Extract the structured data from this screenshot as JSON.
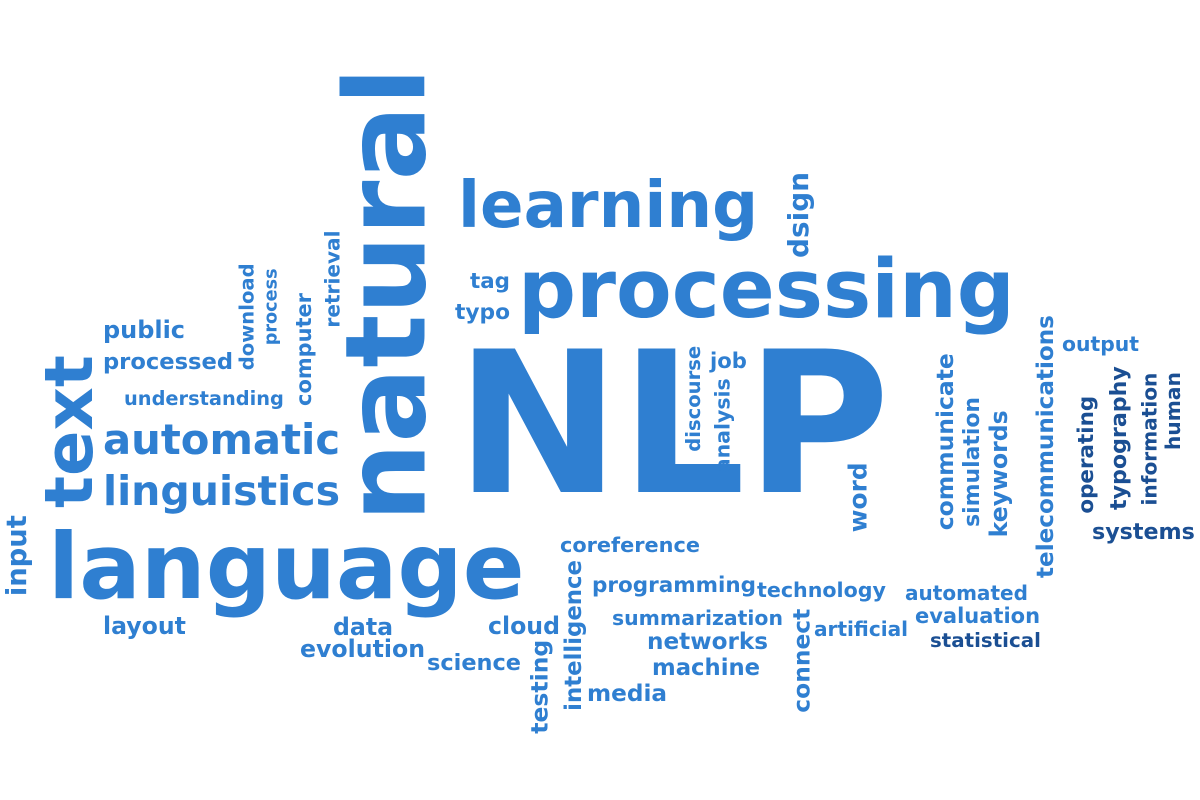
{
  "colors": {
    "background": "#ffffff",
    "blue": "#2f7fd1",
    "dark_blue": "#1b4f93"
  },
  "words": [
    {
      "text": "NLP",
      "color": "blue"
    },
    {
      "text": "processing",
      "color": "blue"
    },
    {
      "text": "natural",
      "color": "blue"
    },
    {
      "text": "language",
      "color": "blue"
    },
    {
      "text": "learning",
      "color": "blue"
    },
    {
      "text": "text",
      "color": "blue"
    },
    {
      "text": "automatic",
      "color": "blue"
    },
    {
      "text": "linguistics",
      "color": "blue"
    },
    {
      "text": "public",
      "color": "blue"
    },
    {
      "text": "processed",
      "color": "blue"
    },
    {
      "text": "understanding",
      "color": "blue"
    },
    {
      "text": "download",
      "color": "blue"
    },
    {
      "text": "process",
      "color": "blue"
    },
    {
      "text": "computer",
      "color": "blue"
    },
    {
      "text": "retrieval",
      "color": "blue"
    },
    {
      "text": "tag",
      "color": "blue"
    },
    {
      "text": "typo",
      "color": "blue"
    },
    {
      "text": "dsign",
      "color": "blue"
    },
    {
      "text": "input",
      "color": "blue"
    },
    {
      "text": "layout",
      "color": "blue"
    },
    {
      "text": "data",
      "color": "blue"
    },
    {
      "text": "evolution",
      "color": "blue"
    },
    {
      "text": "cloud",
      "color": "blue"
    },
    {
      "text": "science",
      "color": "blue"
    },
    {
      "text": "testing",
      "color": "blue"
    },
    {
      "text": "intelligence",
      "color": "blue"
    },
    {
      "text": "media",
      "color": "blue"
    },
    {
      "text": "coreference",
      "color": "blue"
    },
    {
      "text": "programming",
      "color": "blue"
    },
    {
      "text": "technology",
      "color": "blue"
    },
    {
      "text": "summarization",
      "color": "blue"
    },
    {
      "text": "networks",
      "color": "blue"
    },
    {
      "text": "machine",
      "color": "blue"
    },
    {
      "text": "connect",
      "color": "blue"
    },
    {
      "text": "artificial",
      "color": "blue"
    },
    {
      "text": "discourse",
      "color": "blue"
    },
    {
      "text": "analysis",
      "color": "blue"
    },
    {
      "text": "job",
      "color": "blue"
    },
    {
      "text": "word",
      "color": "blue"
    },
    {
      "text": "communicate",
      "color": "blue"
    },
    {
      "text": "simulation",
      "color": "blue"
    },
    {
      "text": "keywords",
      "color": "blue"
    },
    {
      "text": "telecommunications",
      "color": "blue"
    },
    {
      "text": "automated",
      "color": "blue"
    },
    {
      "text": "evaluation",
      "color": "blue"
    },
    {
      "text": "statistical",
      "color": "dark_blue"
    },
    {
      "text": "output",
      "color": "blue"
    },
    {
      "text": "operating",
      "color": "dark_blue"
    },
    {
      "text": "typography",
      "color": "dark_blue"
    },
    {
      "text": "information",
      "color": "dark_blue"
    },
    {
      "text": "human",
      "color": "dark_blue"
    },
    {
      "text": "systems",
      "color": "dark_blue"
    }
  ]
}
